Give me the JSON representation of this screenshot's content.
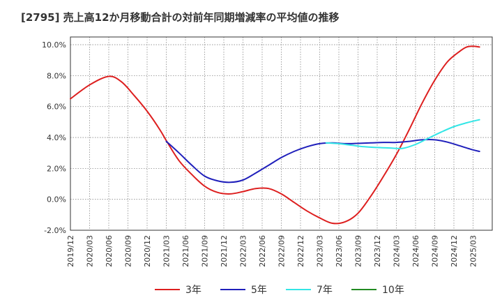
{
  "chart_data": {
    "type": "line",
    "title": "[2795]  売上高12か月移動合計の対前年同期増減率の平均値の推移",
    "xlabel": "",
    "ylabel": "",
    "ylim": [
      -2.0,
      10.5
    ],
    "yticks": [
      -2.0,
      0.0,
      2.0,
      4.0,
      6.0,
      8.0,
      10.0
    ],
    "ytick_labels": [
      "-2.0%",
      "0.0%",
      "2.0%",
      "4.0%",
      "6.0%",
      "8.0%",
      "10.0%"
    ],
    "xlim": [
      0,
      66
    ],
    "xtick_labels": [
      "2019/12",
      "2020/03",
      "2020/06",
      "2020/09",
      "2020/12",
      "2021/03",
      "2021/06",
      "2021/09",
      "2021/12",
      "2022/03",
      "2022/06",
      "2022/09",
      "2022/12",
      "2023/03",
      "2023/06",
      "2023/09",
      "2023/12",
      "2024/03",
      "2024/06",
      "2024/09",
      "2024/12",
      "2025/03"
    ],
    "grid": true,
    "legend_position": "bottom",
    "series": [
      {
        "name": "3年",
        "color": "#dd1f1f",
        "points": [
          [
            0,
            6.5
          ],
          [
            3,
            7.4
          ],
          [
            6,
            7.95
          ],
          [
            8,
            7.6
          ],
          [
            10,
            6.7
          ],
          [
            12,
            5.7
          ],
          [
            14,
            4.5
          ],
          [
            15,
            3.8
          ],
          [
            17,
            2.5
          ],
          [
            19,
            1.6
          ],
          [
            21,
            0.85
          ],
          [
            23,
            0.45
          ],
          [
            25,
            0.35
          ],
          [
            27,
            0.5
          ],
          [
            29,
            0.7
          ],
          [
            31,
            0.7
          ],
          [
            33,
            0.35
          ],
          [
            35,
            -0.2
          ],
          [
            37,
            -0.75
          ],
          [
            39,
            -1.2
          ],
          [
            41,
            -1.55
          ],
          [
            43,
            -1.45
          ],
          [
            45,
            -0.9
          ],
          [
            47,
            0.2
          ],
          [
            49,
            1.5
          ],
          [
            51,
            2.9
          ],
          [
            53,
            4.5
          ],
          [
            55,
            6.2
          ],
          [
            57,
            7.7
          ],
          [
            59,
            8.9
          ],
          [
            61,
            9.6
          ],
          [
            62,
            9.85
          ],
          [
            63,
            9.9
          ],
          [
            64,
            9.85
          ]
        ]
      },
      {
        "name": "5年",
        "color": "#1f1fbb",
        "points": [
          [
            15,
            3.75
          ],
          [
            17,
            3.0
          ],
          [
            19,
            2.2
          ],
          [
            21,
            1.5
          ],
          [
            23,
            1.2
          ],
          [
            25,
            1.1
          ],
          [
            27,
            1.25
          ],
          [
            29,
            1.7
          ],
          [
            31,
            2.2
          ],
          [
            33,
            2.7
          ],
          [
            35,
            3.1
          ],
          [
            37,
            3.4
          ],
          [
            39,
            3.6
          ],
          [
            41,
            3.65
          ],
          [
            43,
            3.6
          ],
          [
            45,
            3.62
          ],
          [
            47,
            3.65
          ],
          [
            49,
            3.68
          ],
          [
            51,
            3.68
          ],
          [
            53,
            3.75
          ],
          [
            55,
            3.85
          ],
          [
            57,
            3.85
          ],
          [
            59,
            3.7
          ],
          [
            61,
            3.45
          ],
          [
            63,
            3.2
          ],
          [
            64,
            3.1
          ]
        ]
      },
      {
        "name": "7年",
        "color": "#33e6e6",
        "points": [
          [
            40,
            3.65
          ],
          [
            42,
            3.6
          ],
          [
            44,
            3.5
          ],
          [
            46,
            3.4
          ],
          [
            48,
            3.35
          ],
          [
            50,
            3.32
          ],
          [
            52,
            3.3
          ],
          [
            54,
            3.55
          ],
          [
            56,
            3.95
          ],
          [
            58,
            4.35
          ],
          [
            60,
            4.7
          ],
          [
            62,
            4.95
          ],
          [
            64,
            5.15
          ]
        ]
      },
      {
        "name": "10年",
        "color": "#228b22",
        "points": []
      }
    ]
  }
}
